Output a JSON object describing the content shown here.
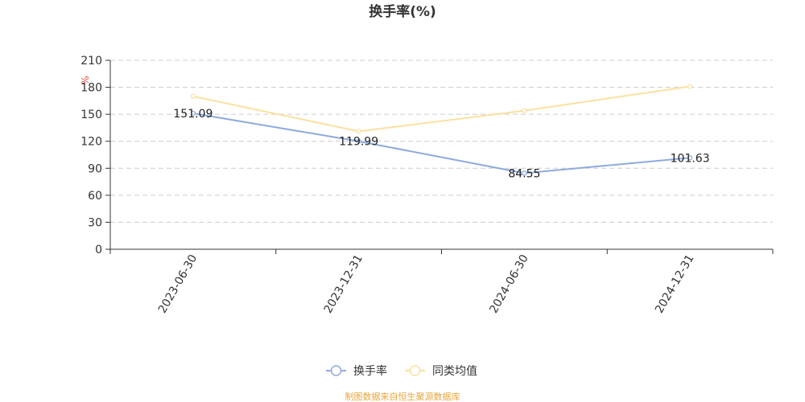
{
  "chart_data": {
    "type": "line",
    "title": "换手率(%)",
    "ylabel": "%",
    "categories": [
      "2023-06-30",
      "2023-12-31",
      "2024-06-30",
      "2024-12-31"
    ],
    "series": [
      {
        "name": "换手率",
        "color": "#8faadc",
        "values": [
          151.09,
          119.99,
          84.55,
          101.63
        ],
        "labels": [
          "151.09",
          "119.99",
          "84.55",
          "101.63"
        ]
      },
      {
        "name": "同类均值",
        "color": "#fbe0a0",
        "values": [
          170.0,
          131.0,
          154.0,
          181.0
        ]
      }
    ],
    "ylim": [
      0,
      210
    ],
    "yticks": [
      "0",
      "30",
      "60",
      "90",
      "120",
      "150",
      "180",
      "210"
    ],
    "grid": true,
    "legend_position": "bottom-center"
  },
  "footer": {
    "source": "制图数据来自恒生聚源数据库"
  }
}
